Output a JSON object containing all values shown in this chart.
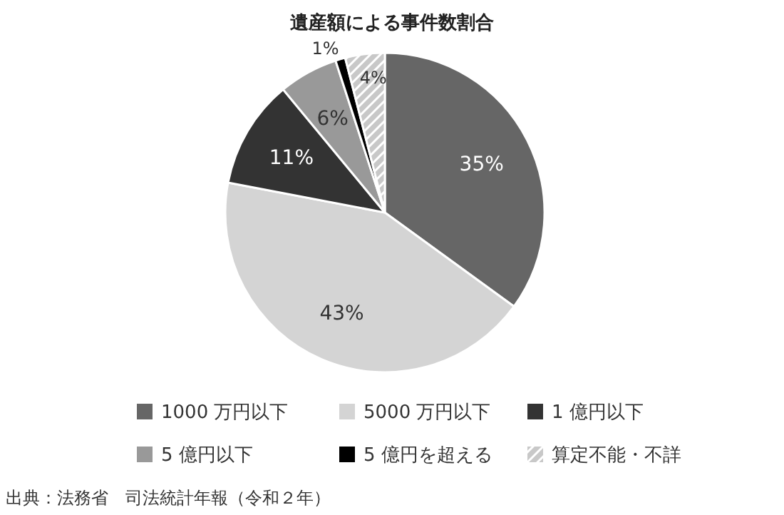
{
  "chart_data": {
    "type": "pie",
    "title": "遺産額による事件数割合",
    "categories": [
      "1000 万円以下",
      "5000 万円以下",
      "1 億円以下",
      "5 億円以下",
      "5 億円を超える",
      "算定不能・不詳"
    ],
    "values": [
      35,
      43,
      11,
      6,
      1,
      4
    ],
    "colors": [
      "#666666",
      "#d4d4d4",
      "#333333",
      "#999999",
      "#000000",
      "#c8c8c8"
    ],
    "value_labels": [
      "35%",
      "43%",
      "11%",
      "6%",
      "1%",
      "4%"
    ],
    "legend": "bottom",
    "annotations": [
      "出典：法務省　司法統計年報（令和２年）"
    ]
  }
}
